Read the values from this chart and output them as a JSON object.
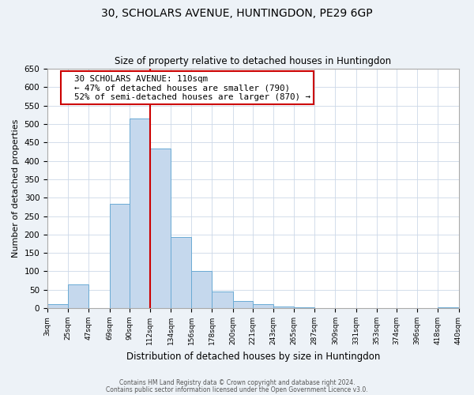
{
  "title1": "30, SCHOLARS AVENUE, HUNTINGDON, PE29 6GP",
  "title2": "Size of property relative to detached houses in Huntingdon",
  "xlabel": "Distribution of detached houses by size in Huntingdon",
  "ylabel": "Number of detached properties",
  "bar_edges": [
    3,
    25,
    47,
    69,
    90,
    112,
    134,
    156,
    178,
    200,
    221,
    243,
    265,
    287,
    309,
    331,
    353,
    374,
    396,
    418,
    440
  ],
  "bar_heights": [
    10,
    65,
    0,
    283,
    515,
    433,
    193,
    101,
    46,
    19,
    10,
    5,
    2,
    0,
    0,
    0,
    0,
    0,
    0,
    3
  ],
  "bar_color": "#c5d8ed",
  "bar_edgecolor": "#6aaad4",
  "ylim": [
    0,
    650
  ],
  "yticks": [
    0,
    50,
    100,
    150,
    200,
    250,
    300,
    350,
    400,
    450,
    500,
    550,
    600,
    650
  ],
  "property_line_x": 112,
  "property_line_color": "#cc0000",
  "annotation_box_text": "  30 SCHOLARS AVENUE: 110sqm\n  ← 47% of detached houses are smaller (790)\n  52% of semi-detached houses are larger (870) →",
  "footer1": "Contains HM Land Registry data © Crown copyright and database right 2024.",
  "footer2": "Contains public sector information licensed under the Open Government Licence v3.0.",
  "background_color": "#edf2f7",
  "plot_background": "#ffffff",
  "grid_color": "#ccd8e8"
}
